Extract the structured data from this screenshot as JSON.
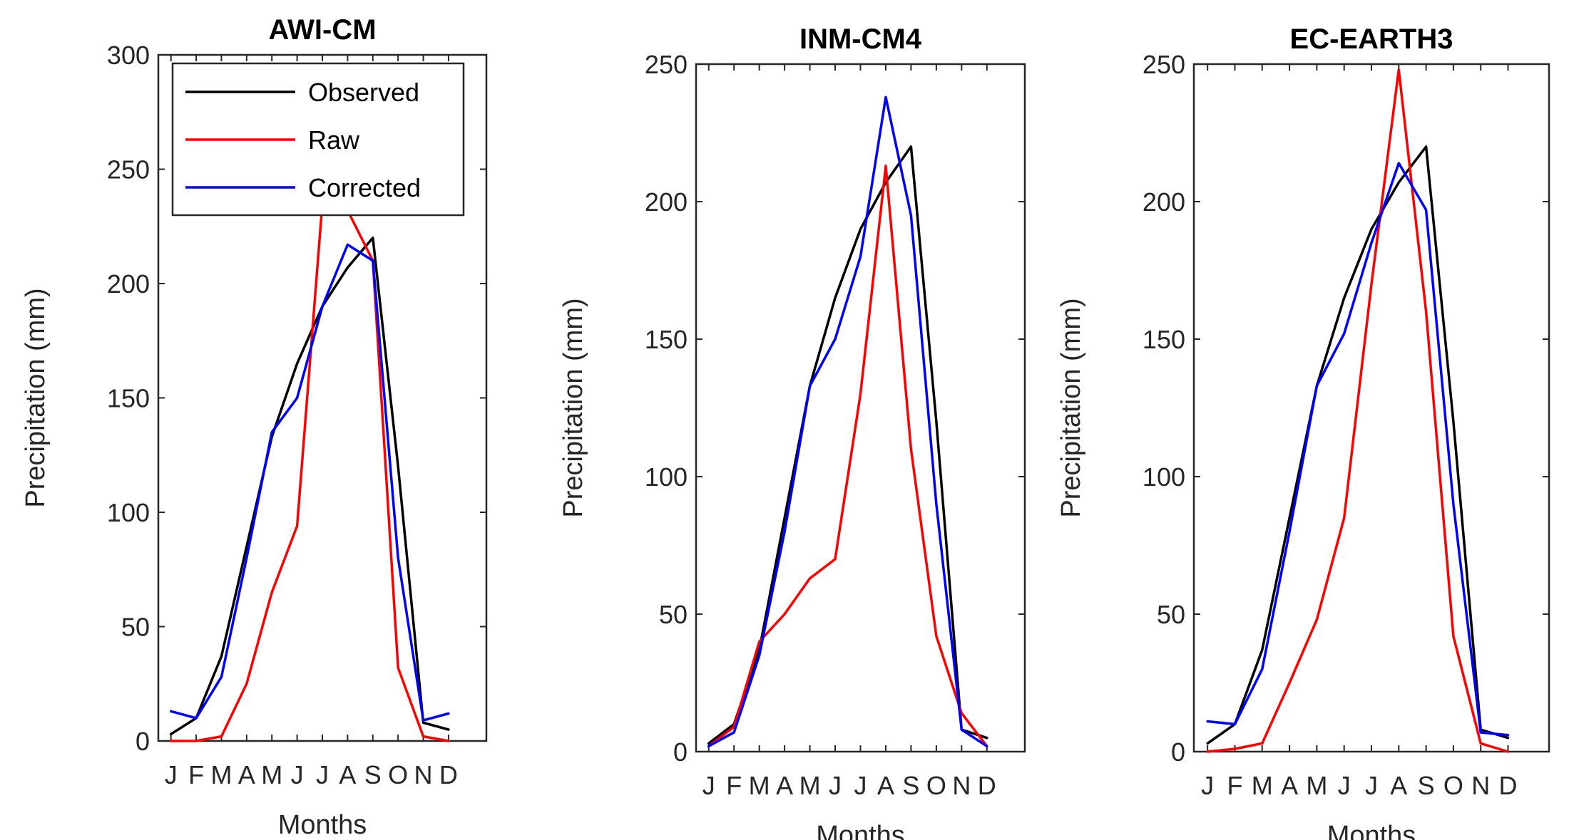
{
  "chart_data": [
    {
      "type": "line",
      "title": "AWI-CM",
      "xlabel": "Months",
      "ylabel": "Precipitation (mm)",
      "categories": [
        "J",
        "F",
        "M",
        "A",
        "M",
        "J",
        "J",
        "A",
        "S",
        "O",
        "N",
        "D"
      ],
      "ylim": [
        0,
        300
      ],
      "yticks": [
        0,
        50,
        100,
        150,
        200,
        250,
        300
      ],
      "series": [
        {
          "name": "Observed",
          "color": "#000000",
          "values": [
            3,
            10,
            37,
            85,
            133,
            165,
            190,
            207,
            220,
            120,
            8,
            5
          ]
        },
        {
          "name": "Raw",
          "color": "#ff0000",
          "values": [
            0,
            0,
            2,
            25,
            65,
            94,
            235,
            232,
            210,
            32,
            2,
            0
          ]
        },
        {
          "name": "Corrected",
          "color": "#0000ff",
          "values": [
            13,
            10,
            28,
            80,
            135,
            150,
            190,
            217,
            210,
            80,
            9,
            12
          ]
        }
      ],
      "legend_position": "top-left"
    },
    {
      "type": "line",
      "title": "INM-CM4",
      "xlabel": "Months",
      "ylabel": "Precipitation (mm)",
      "categories": [
        "J",
        "F",
        "M",
        "A",
        "M",
        "J",
        "J",
        "A",
        "S",
        "O",
        "N",
        "D"
      ],
      "ylim": [
        0,
        250
      ],
      "yticks": [
        0,
        50,
        100,
        150,
        200,
        250
      ],
      "series": [
        {
          "name": "Observed",
          "color": "#000000",
          "values": [
            3,
            10,
            37,
            85,
            133,
            165,
            190,
            207,
            220,
            120,
            8,
            5
          ]
        },
        {
          "name": "Raw",
          "color": "#ff0000",
          "values": [
            2,
            9,
            40,
            50,
            63,
            70,
            130,
            213,
            110,
            42,
            14,
            2
          ]
        },
        {
          "name": "Corrected",
          "color": "#0000ff",
          "values": [
            2,
            7,
            35,
            80,
            133,
            150,
            180,
            238,
            195,
            90,
            8,
            2
          ]
        }
      ]
    },
    {
      "type": "line",
      "title": "EC-EARTH3",
      "xlabel": "Months",
      "ylabel": "Precipitation (mm)",
      "categories": [
        "J",
        "F",
        "M",
        "A",
        "M",
        "J",
        "J",
        "A",
        "S",
        "O",
        "N",
        "D"
      ],
      "ylim": [
        0,
        250
      ],
      "yticks": [
        0,
        50,
        100,
        150,
        200,
        250
      ],
      "series": [
        {
          "name": "Observed",
          "color": "#000000",
          "values": [
            3,
            10,
            37,
            85,
            133,
            165,
            190,
            207,
            220,
            120,
            8,
            5
          ]
        },
        {
          "name": "Raw",
          "color": "#ff0000",
          "values": [
            0,
            1,
            3,
            25,
            48,
            85,
            170,
            248,
            160,
            42,
            3,
            0
          ]
        },
        {
          "name": "Corrected",
          "color": "#0000ff",
          "values": [
            11,
            10,
            30,
            80,
            133,
            152,
            185,
            214,
            197,
            90,
            7,
            6
          ]
        }
      ]
    }
  ]
}
